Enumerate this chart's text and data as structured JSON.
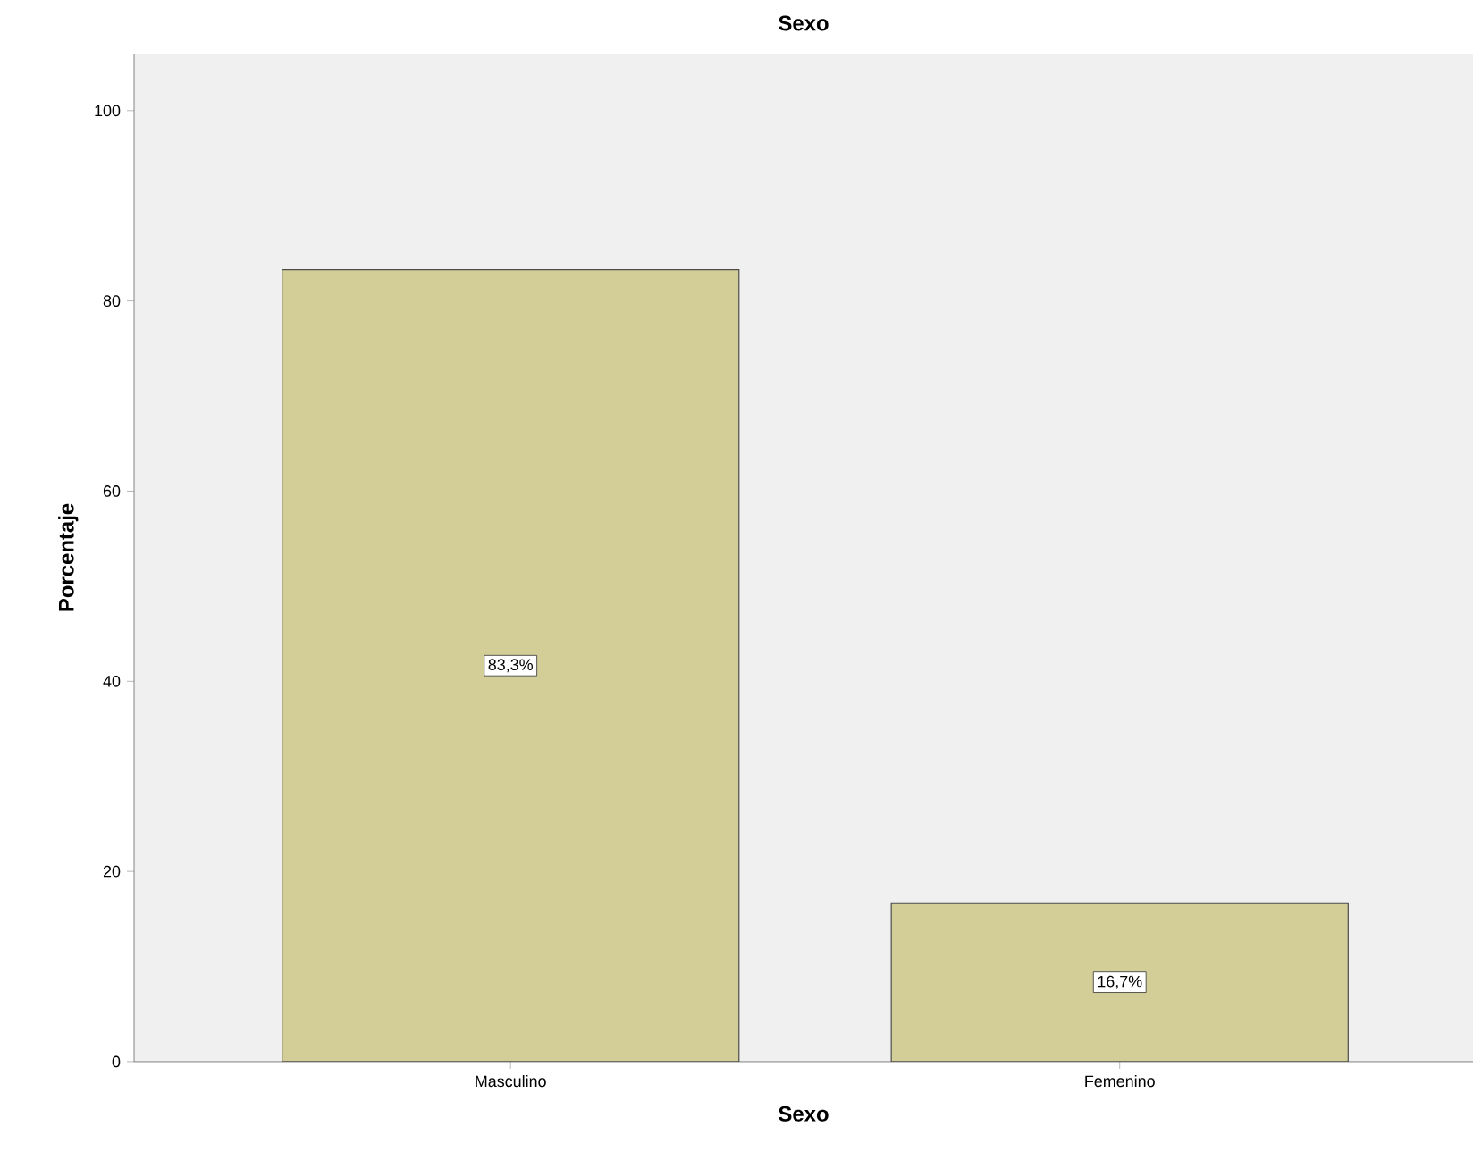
{
  "chart_data": {
    "type": "bar",
    "title": "Sexo",
    "xlabel": "Sexo",
    "ylabel": "Porcentaje",
    "categories": [
      "Masculino",
      "Femenino"
    ],
    "values": [
      83.3,
      16.7
    ],
    "value_labels": [
      "83,3%",
      "16,7%"
    ],
    "color": "#d3ce98",
    "ylim": [
      0,
      106
    ],
    "yticks": [
      0,
      20,
      40,
      60,
      80,
      100
    ]
  }
}
